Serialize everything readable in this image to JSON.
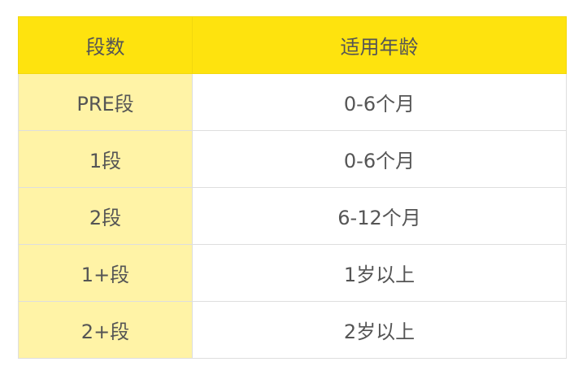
{
  "table": {
    "headers": [
      "段数",
      "适用年龄"
    ],
    "rows": [
      [
        "PRE段",
        "0-6个月"
      ],
      [
        "1段",
        "0-6个月"
      ],
      [
        "2段",
        "6-12个月"
      ],
      [
        "1+段",
        "1岁以上"
      ],
      [
        "2+段",
        "2岁以上"
      ]
    ]
  },
  "colors": {
    "header_bg": "#fee30e",
    "first_column_bg": "#fff3a6",
    "text": "#555555"
  }
}
